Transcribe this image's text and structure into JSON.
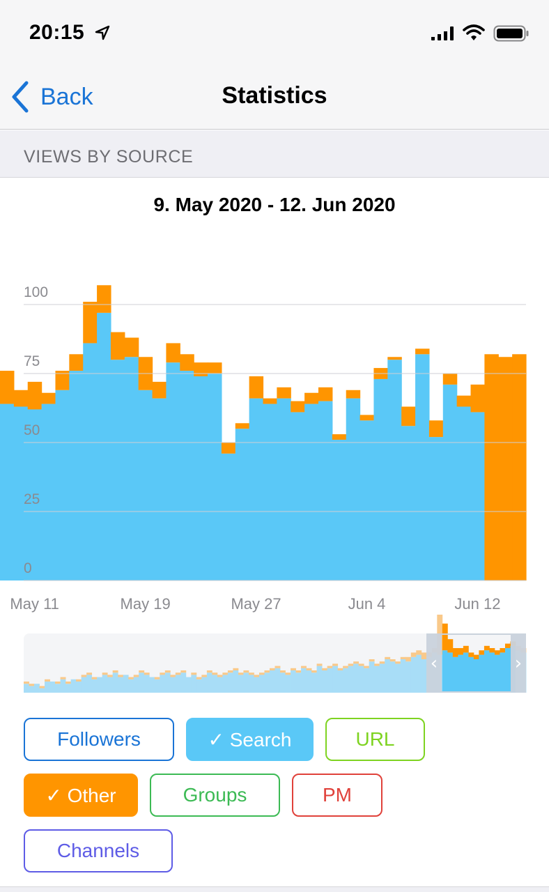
{
  "status_bar": {
    "time": "20:15"
  },
  "nav": {
    "back_label": "Back",
    "title": "Statistics"
  },
  "section": {
    "header": "VIEWS BY SOURCE"
  },
  "chart_data": {
    "type": "bar",
    "title": "9. May 2020 - 12. Jun 2020",
    "stacked": true,
    "ylim": [
      0,
      110
    ],
    "yticks": [
      "0",
      "25",
      "50",
      "75",
      "100"
    ],
    "xtick_labels": [
      "May 11",
      "May 19",
      "May 27",
      "Jun 4",
      "Jun 12"
    ],
    "grid": true,
    "series": [
      {
        "name": "Search",
        "color": "#5ac8f7",
        "values": [
          64,
          63,
          62,
          64,
          69,
          76,
          86,
          97,
          80,
          81,
          69,
          66,
          79,
          76,
          74,
          75,
          46,
          55,
          66,
          64,
          66,
          61,
          64,
          65,
          51,
          66,
          58,
          73,
          80,
          56,
          82,
          52,
          71,
          63,
          61,
          0,
          0,
          0
        ]
      },
      {
        "name": "Other",
        "color": "#ff9500",
        "values": [
          12,
          6,
          10,
          4,
          7,
          6,
          15,
          10,
          10,
          7,
          12,
          6,
          7,
          6,
          5,
          4,
          4,
          2,
          8,
          2,
          4,
          4,
          4,
          5,
          2,
          3,
          2,
          4,
          1,
          7,
          2,
          6,
          4,
          4,
          10,
          82,
          81,
          82
        ]
      }
    ]
  },
  "mini_chart": {
    "search_values": [
      4,
      3,
      4,
      2,
      5,
      5,
      4,
      6,
      4,
      6,
      5,
      7,
      8,
      6,
      7,
      8,
      7,
      9,
      7,
      8,
      6,
      7,
      9,
      8,
      7,
      6,
      8,
      9,
      7,
      8,
      9,
      7,
      8,
      6,
      7,
      9,
      8,
      7,
      8,
      9,
      10,
      8,
      9,
      8,
      7,
      8,
      9,
      10,
      11,
      9,
      8,
      10,
      9,
      11,
      10,
      9,
      12,
      10,
      11,
      12,
      10,
      11,
      12,
      13,
      12,
      11,
      14,
      12,
      13,
      15,
      14,
      13,
      15,
      14,
      16,
      17,
      15,
      16,
      18,
      17,
      19,
      18,
      16,
      17,
      18,
      16,
      15,
      17,
      19,
      18,
      17,
      18,
      20,
      21,
      19,
      18
    ],
    "other_values": [
      1,
      1,
      0,
      1,
      1,
      0,
      1,
      1,
      1,
      0,
      1,
      1,
      1,
      1,
      0,
      1,
      1,
      1,
      1,
      0,
      1,
      1,
      1,
      1,
      0,
      1,
      1,
      1,
      1,
      1,
      1,
      0,
      1,
      1,
      1,
      1,
      1,
      1,
      1,
      1,
      1,
      1,
      1,
      1,
      1,
      1,
      1,
      1,
      1,
      1,
      1,
      1,
      1,
      1,
      1,
      1,
      1,
      1,
      1,
      1,
      1,
      1,
      1,
      1,
      1,
      1,
      1,
      1,
      1,
      1,
      1,
      1,
      1,
      2,
      2,
      2,
      3,
      2,
      2,
      18,
      12,
      6,
      4,
      3,
      3,
      2,
      2,
      2,
      2,
      2,
      2,
      2,
      2,
      2,
      2,
      2
    ],
    "left_handle": "‹",
    "right_handle": "›"
  },
  "filters": [
    {
      "label": "Followers",
      "selected": false,
      "color": "#1a74d6"
    },
    {
      "label": "✓ Search",
      "selected": true,
      "color": "#5ac8f7"
    },
    {
      "label": "URL",
      "selected": false,
      "color": "#7ed321"
    },
    {
      "label": "✓ Other",
      "selected": true,
      "color": "#ff9500"
    },
    {
      "label": "Groups",
      "selected": false,
      "color": "#3cba54"
    },
    {
      "label": "PM",
      "selected": false,
      "color": "#e0413a"
    },
    {
      "label": "Channels",
      "selected": false,
      "color": "#5e5ce6"
    }
  ]
}
